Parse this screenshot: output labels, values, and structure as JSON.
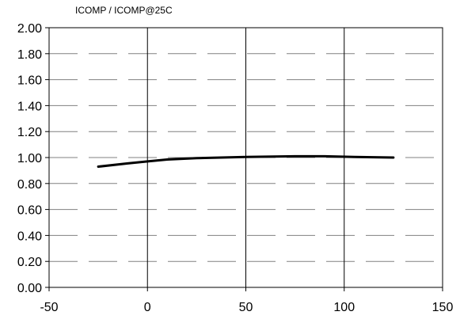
{
  "chart_data": {
    "type": "line",
    "title": "ICOMP / ICOMP@25C",
    "xlabel": "",
    "ylabel": "",
    "xlim": [
      -50,
      150
    ],
    "ylim": [
      0,
      2
    ],
    "x_ticks": [
      -50,
      0,
      50,
      100,
      150
    ],
    "y_ticks": [
      0,
      0.2,
      0.4,
      0.6,
      0.8,
      1.0,
      1.2,
      1.4,
      1.6,
      1.8,
      2.0
    ],
    "x_tick_labels": [
      "-50",
      "0",
      "50",
      "100",
      "150"
    ],
    "y_tick_labels": [
      "0.00",
      "0.20",
      "0.40",
      "0.60",
      "0.80",
      "1.00",
      "1.20",
      "1.40",
      "1.60",
      "1.80",
      "2.00"
    ],
    "grid": {
      "vertical": "solid",
      "horizontal": "dashed"
    },
    "series": [
      {
        "x": [
          -25,
          -10,
          0,
          10,
          25,
          50,
          75,
          90,
          105,
          125
        ],
        "y": [
          0.93,
          0.955,
          0.97,
          0.985,
          0.995,
          1.005,
          1.01,
          1.01,
          1.005,
          1.0
        ],
        "color": "#000000"
      }
    ]
  }
}
